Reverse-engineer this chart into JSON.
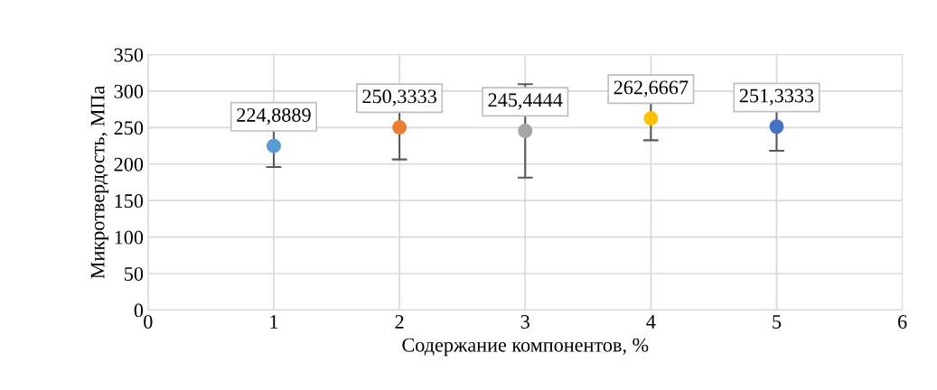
{
  "chart_data": {
    "type": "scatter",
    "xlabel": "Содержание компонентов, %",
    "ylabel": "Микротвердость, МПа",
    "x": [
      1,
      2,
      3,
      4,
      5
    ],
    "values": [
      224.8889,
      250.3333,
      245.4444,
      262.6667,
      251.3333
    ],
    "errors": [
      29,
      44,
      64,
      30,
      33
    ],
    "colors": [
      "#5b9bd5",
      "#ed7d31",
      "#a5a5a5",
      "#ffc000",
      "#4472c4"
    ],
    "value_labels": [
      "224,8889",
      "250,3333",
      "245,4444",
      "262,6667",
      "251,3333"
    ],
    "xlim": [
      0,
      6
    ],
    "xticks": [
      0,
      1,
      2,
      3,
      4,
      5,
      6
    ],
    "ylim": [
      0,
      350
    ],
    "yticks": [
      0,
      50,
      100,
      150,
      200,
      250,
      300,
      350
    ],
    "grid": true,
    "marker": "circle"
  }
}
